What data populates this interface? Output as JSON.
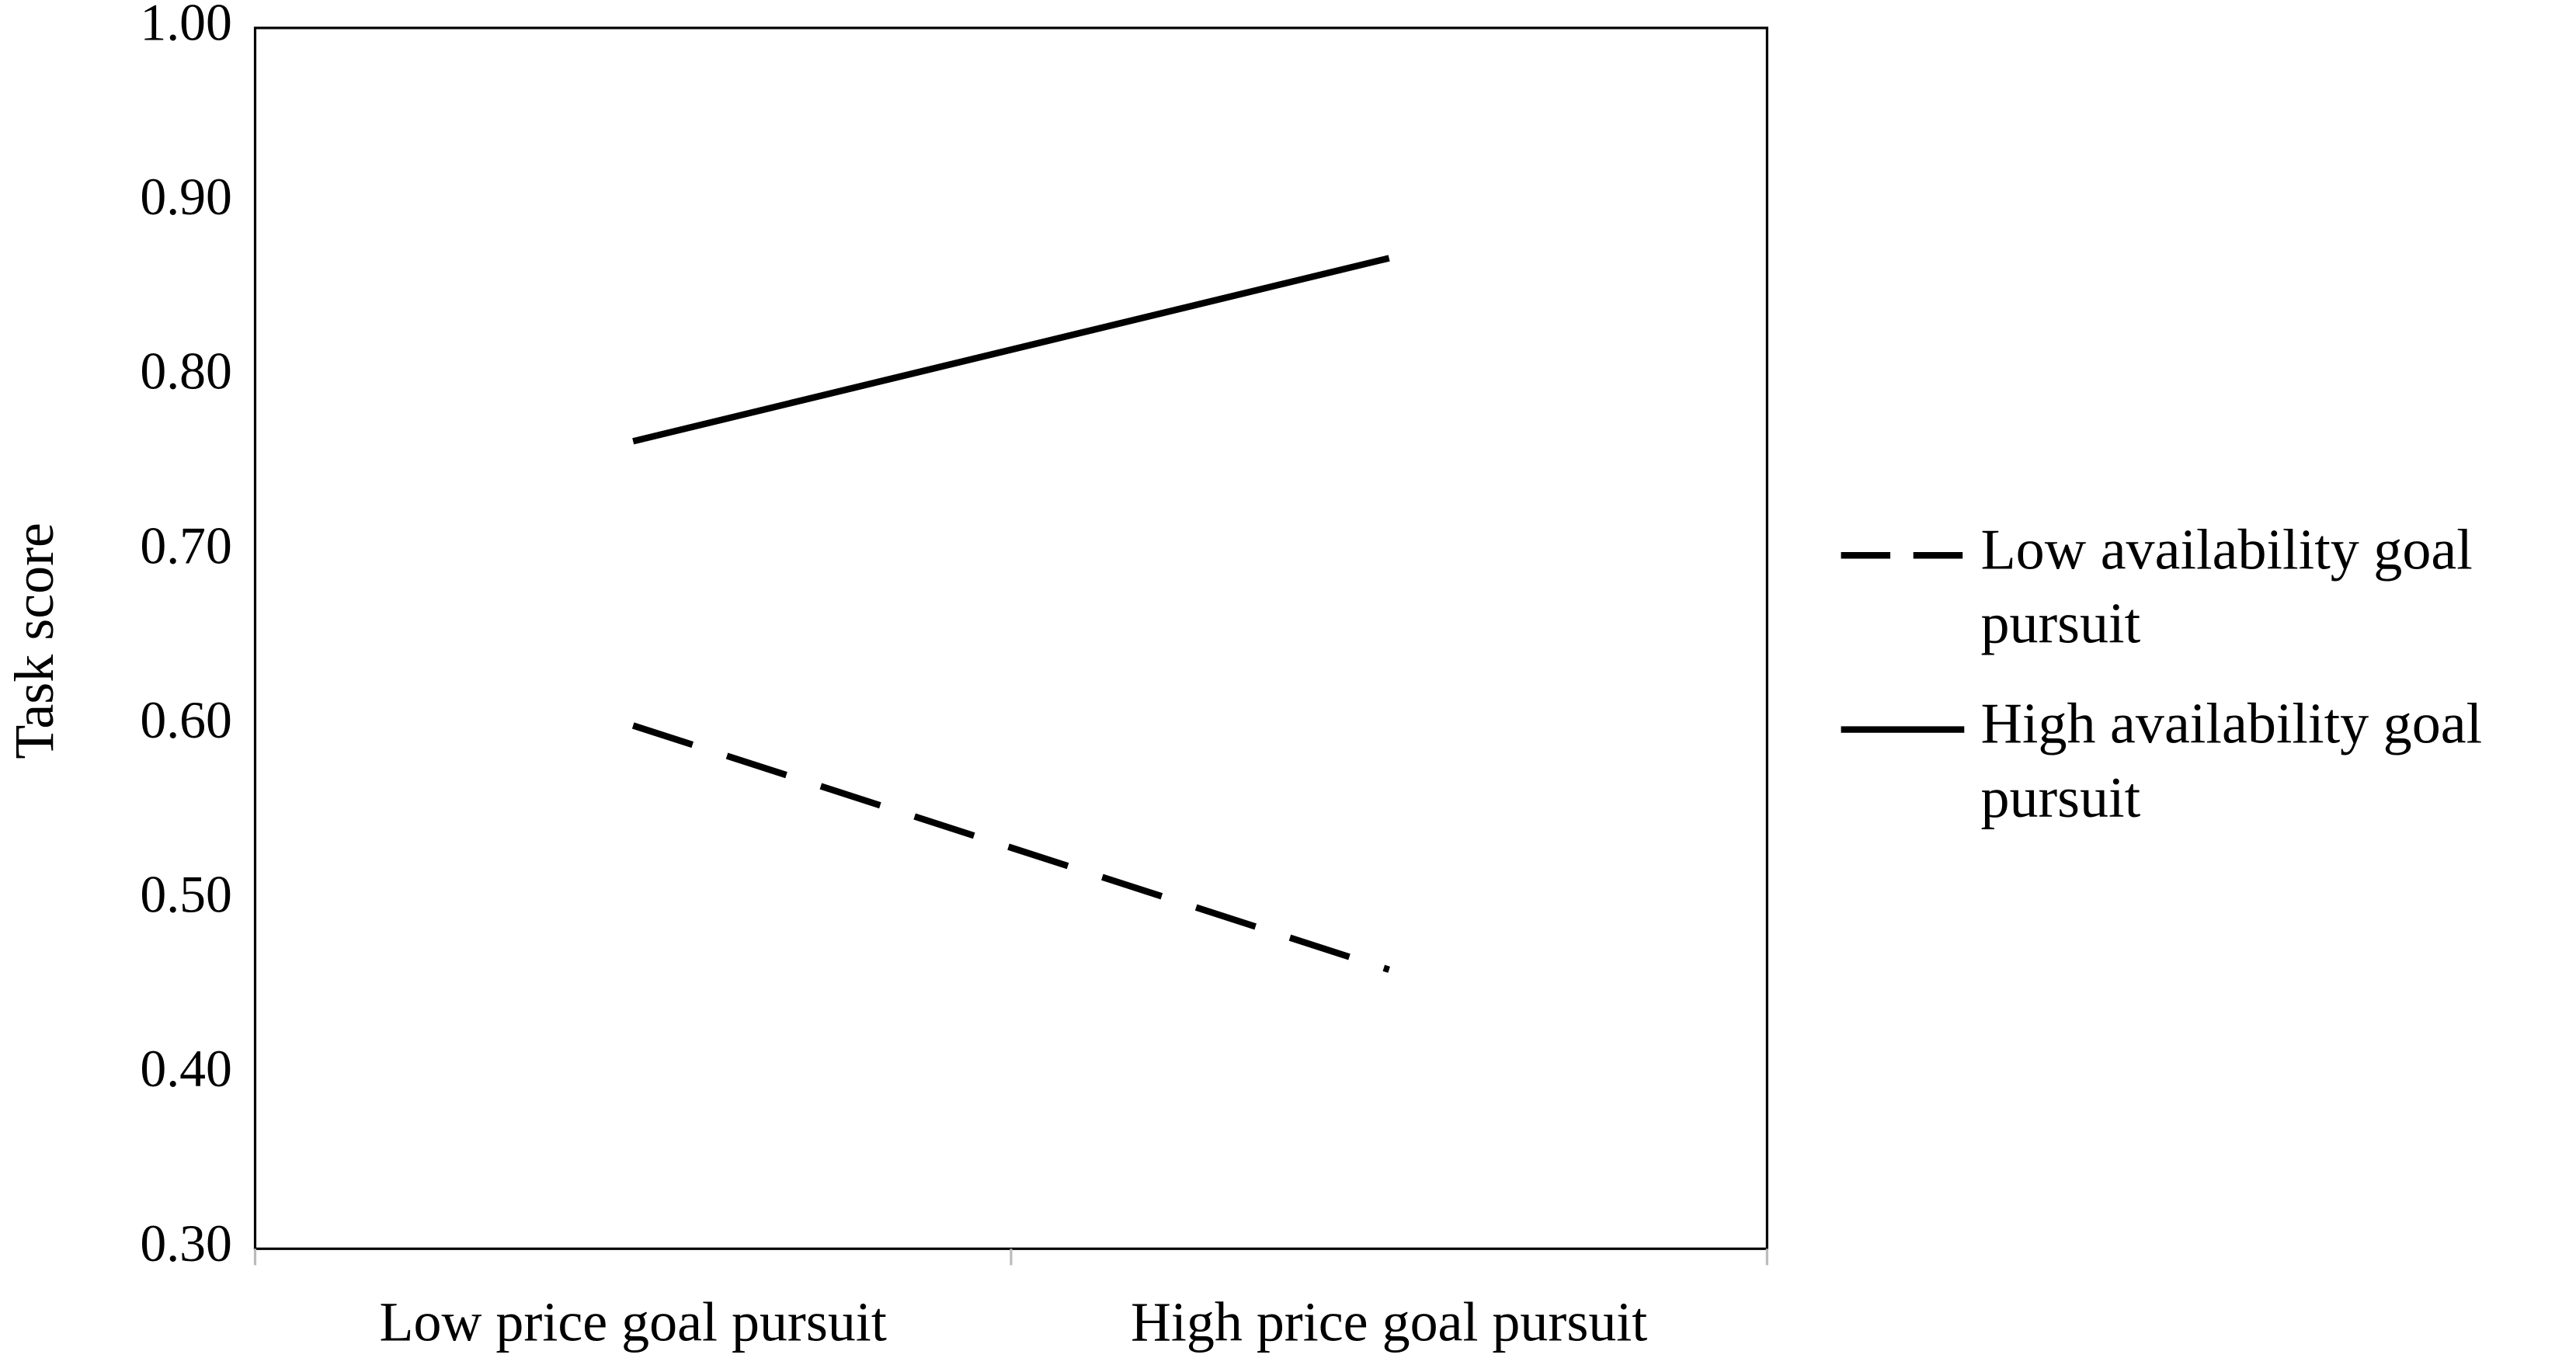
{
  "chart_data": {
    "type": "line",
    "y_label": "Task score",
    "categories": [
      "Low price goal pursuit",
      "High price goal pursuit"
    ],
    "series": [
      {
        "name": "Low availability goal pursuit",
        "color": "#000000",
        "line_style": "dashed",
        "values": [
          0.6,
          0.46
        ]
      },
      {
        "name": "High availability goal pursuit",
        "color": "#000000",
        "line_style": "solid",
        "values": [
          0.763,
          0.868
        ]
      }
    ],
    "ylim": [
      0.3,
      1.0
    ],
    "yticks": [
      {
        "value": 0.3,
        "label": "0.30"
      },
      {
        "value": 0.4,
        "label": "0.40"
      },
      {
        "value": 0.5,
        "label": "0.50"
      },
      {
        "value": 0.6,
        "label": "0.60"
      },
      {
        "value": 0.7,
        "label": "0.70"
      },
      {
        "value": 0.8,
        "label": "0.80"
      },
      {
        "value": 0.9,
        "label": "0.90"
      },
      {
        "value": 1.0,
        "label": "1.00"
      }
    ],
    "grid": false,
    "legend": "right"
  }
}
